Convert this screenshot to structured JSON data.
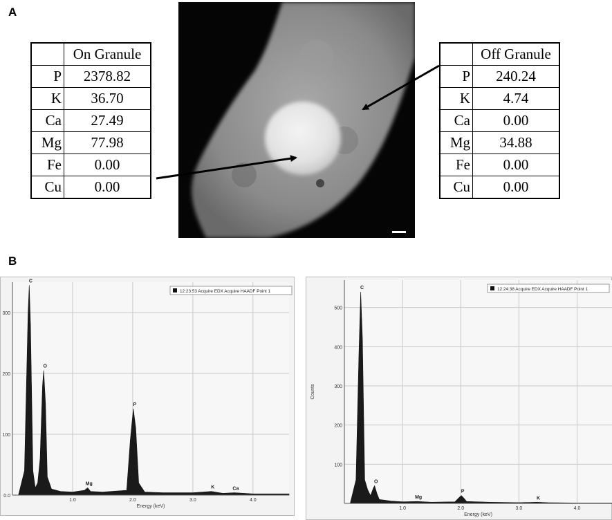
{
  "panel_a": {
    "letter": "A",
    "on_table": {
      "header": "On Granule",
      "rows": [
        {
          "element": "P",
          "value": "2378.82"
        },
        {
          "element": "K",
          "value": "36.70"
        },
        {
          "element": "Ca",
          "value": "27.49"
        },
        {
          "element": "Mg",
          "value": "77.98"
        },
        {
          "element": "Fe",
          "value": "0.00"
        },
        {
          "element": "Cu",
          "value": "0.00"
        }
      ]
    },
    "off_table": {
      "header": "Off Granule",
      "rows": [
        {
          "element": "P",
          "value": "240.24"
        },
        {
          "element": "K",
          "value": "4.74"
        },
        {
          "element": "Ca",
          "value": "0.00"
        },
        {
          "element": "Mg",
          "value": "34.88"
        },
        {
          "element": "Fe",
          "value": "0.00"
        },
        {
          "element": "Cu",
          "value": "0.00"
        }
      ]
    }
  },
  "panel_b": {
    "letter": "B"
  },
  "chart_data": [
    {
      "type": "area",
      "title": "",
      "legend": "12:23:53 Acquire EDX Acquire HAADF Point 1",
      "legend_position": "top-right",
      "xlabel": "Energy (keV)",
      "ylabel": "",
      "xlim": [
        0,
        4.6
      ],
      "ylim": [
        0,
        350
      ],
      "xticks": [
        "1.0",
        "2.0",
        "3.0",
        "4.0"
      ],
      "yticks": [
        "0.0",
        "100",
        "200",
        "300"
      ],
      "grid": true,
      "peaks": [
        {
          "label": "C",
          "x": 0.28,
          "y": 345
        },
        {
          "label": "O",
          "x": 0.52,
          "y": 205
        },
        {
          "label": "Mg",
          "x": 1.25,
          "y": 12
        },
        {
          "label": "P",
          "x": 2.01,
          "y": 142
        },
        {
          "label": "K",
          "x": 3.31,
          "y": 6
        },
        {
          "label": "Ca",
          "x": 3.69,
          "y": 4
        }
      ],
      "spectrum": [
        [
          0.1,
          0
        ],
        [
          0.2,
          40
        ],
        [
          0.26,
          300
        ],
        [
          0.28,
          345
        ],
        [
          0.3,
          280
        ],
        [
          0.34,
          40
        ],
        [
          0.38,
          12
        ],
        [
          0.42,
          20
        ],
        [
          0.46,
          60
        ],
        [
          0.5,
          180
        ],
        [
          0.52,
          205
        ],
        [
          0.55,
          150
        ],
        [
          0.58,
          30
        ],
        [
          0.65,
          10
        ],
        [
          0.8,
          6
        ],
        [
          1.0,
          5
        ],
        [
          1.2,
          8
        ],
        [
          1.25,
          12
        ],
        [
          1.3,
          6
        ],
        [
          1.5,
          5
        ],
        [
          1.9,
          8
        ],
        [
          1.96,
          90
        ],
        [
          2.01,
          142
        ],
        [
          2.05,
          110
        ],
        [
          2.1,
          20
        ],
        [
          2.2,
          5
        ],
        [
          2.5,
          4
        ],
        [
          3.0,
          4
        ],
        [
          3.31,
          6
        ],
        [
          3.5,
          3
        ],
        [
          3.69,
          4
        ],
        [
          4.0,
          2
        ],
        [
          4.5,
          2
        ],
        [
          4.6,
          2
        ]
      ]
    },
    {
      "type": "area",
      "title": "",
      "legend": "12:24:38 Acquire EDX Acquire HAADF Point 1",
      "legend_position": "top-right",
      "xlabel": "Energy (keV)",
      "ylabel": "Counts",
      "xlim": [
        0,
        4.6
      ],
      "ylim": [
        0,
        570
      ],
      "xticks": [
        "1.0",
        "2.0",
        "3.0",
        "4.0"
      ],
      "yticks": [
        "100",
        "200",
        "300",
        "400",
        "500"
      ],
      "grid": true,
      "peaks": [
        {
          "label": "C",
          "x": 0.28,
          "y": 540
        },
        {
          "label": "O",
          "x": 0.52,
          "y": 45
        },
        {
          "label": "Mg",
          "x": 1.25,
          "y": 5
        },
        {
          "label": "P",
          "x": 2.01,
          "y": 20
        },
        {
          "label": "K",
          "x": 3.31,
          "y": 3
        }
      ],
      "spectrum": [
        [
          0.1,
          0
        ],
        [
          0.2,
          60
        ],
        [
          0.25,
          380
        ],
        [
          0.28,
          540
        ],
        [
          0.31,
          420
        ],
        [
          0.35,
          60
        ],
        [
          0.4,
          35
        ],
        [
          0.45,
          20
        ],
        [
          0.5,
          40
        ],
        [
          0.52,
          45
        ],
        [
          0.56,
          25
        ],
        [
          0.6,
          10
        ],
        [
          0.8,
          6
        ],
        [
          1.0,
          4
        ],
        [
          1.25,
          5
        ],
        [
          1.5,
          3
        ],
        [
          1.9,
          4
        ],
        [
          1.98,
          16
        ],
        [
          2.01,
          20
        ],
        [
          2.05,
          14
        ],
        [
          2.1,
          5
        ],
        [
          2.5,
          3
        ],
        [
          3.0,
          2
        ],
        [
          3.31,
          3
        ],
        [
          3.5,
          2
        ],
        [
          4.0,
          1
        ],
        [
          4.6,
          1
        ]
      ]
    }
  ]
}
